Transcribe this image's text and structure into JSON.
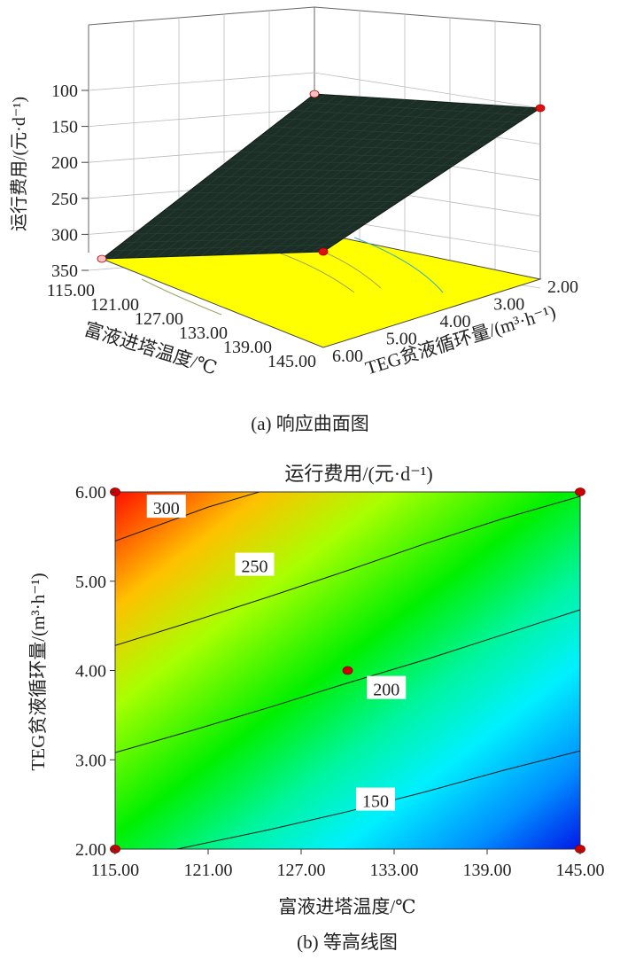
{
  "chart_data": [
    {
      "type": "surface",
      "zlabel": "运行费用/(元·d⁻¹)",
      "z_ticks": [
        "100",
        "150",
        "200",
        "250",
        "300",
        "350"
      ],
      "xlabel": "富液进塔温度/℃",
      "x_ticks": [
        "115.00",
        "121.00",
        "127.00",
        "133.00",
        "139.00",
        "145.00"
      ],
      "ylabel": "TEG贫液循环量/(m³·h⁻¹)",
      "y_ticks": [
        "2.00",
        "3.00",
        "4.00",
        "5.00",
        "6.00"
      ],
      "caption": "(a) 响应曲面图",
      "points": [
        {
          "x": 115,
          "y": 6,
          "z": 330
        },
        {
          "x": 115,
          "y": 2,
          "z": 186
        },
        {
          "x": 145,
          "y": 6,
          "z": 226
        },
        {
          "x": 145,
          "y": 2,
          "z": 120
        }
      ],
      "colors": {
        "floor": "#ffff00",
        "surface": "#1c2f26"
      }
    },
    {
      "type": "contour",
      "title": "运行费用/(元·d⁻¹)",
      "xlabel": "富液进塔温度/℃",
      "ylabel": "TEG贫液循环量/(m³·h⁻¹)",
      "x_ticks": [
        "115.00",
        "121.00",
        "127.00",
        "133.00",
        "139.00",
        "145.00"
      ],
      "y_ticks": [
        "2.00",
        "3.00",
        "4.00",
        "5.00",
        "6.00"
      ],
      "xlim": [
        115,
        145
      ],
      "ylim": [
        2,
        6
      ],
      "contours": [
        {
          "level": "300",
          "points": [
            [
              115,
              5.45
            ],
            [
              118,
              5.64
            ],
            [
              121,
              5.83
            ],
            [
              124.3,
              6.0
            ]
          ]
        },
        {
          "level": "250",
          "points": [
            [
              115,
              4.28
            ],
            [
              120,
              4.55
            ],
            [
              125,
              4.83
            ],
            [
              130,
              5.12
            ],
            [
              135,
              5.42
            ],
            [
              140,
              5.7
            ],
            [
              145,
              5.95
            ]
          ]
        },
        {
          "level": "200",
          "points": [
            [
              115,
              3.08
            ],
            [
              120,
              3.33
            ],
            [
              125,
              3.59
            ],
            [
              130,
              3.86
            ],
            [
              135,
              4.12
            ],
            [
              140,
              4.4
            ],
            [
              145,
              4.68
            ]
          ]
        },
        {
          "level": "150",
          "points": [
            [
              119,
              2.0
            ],
            [
              125,
              2.22
            ],
            [
              130,
              2.42
            ],
            [
              135,
              2.64
            ],
            [
              140,
              2.88
            ],
            [
              145,
              3.1
            ]
          ]
        }
      ],
      "labels": [
        {
          "text": "300",
          "x": 118.3,
          "y": 5.83
        },
        {
          "text": "250",
          "x": 124.0,
          "y": 5.18
        },
        {
          "text": "200",
          "x": 132.5,
          "y": 3.8
        },
        {
          "text": "150",
          "x": 131.8,
          "y": 2.55
        }
      ],
      "design_points": [
        [
          115,
          6
        ],
        [
          145,
          6
        ],
        [
          115,
          2
        ],
        [
          145,
          2
        ],
        [
          130,
          4
        ]
      ],
      "colors": {
        "high": "#e00000",
        "mid": "#00e000",
        "low": "#0010e0",
        "line": "#1a1a1a",
        "point": "#cc0000"
      }
    }
  ]
}
